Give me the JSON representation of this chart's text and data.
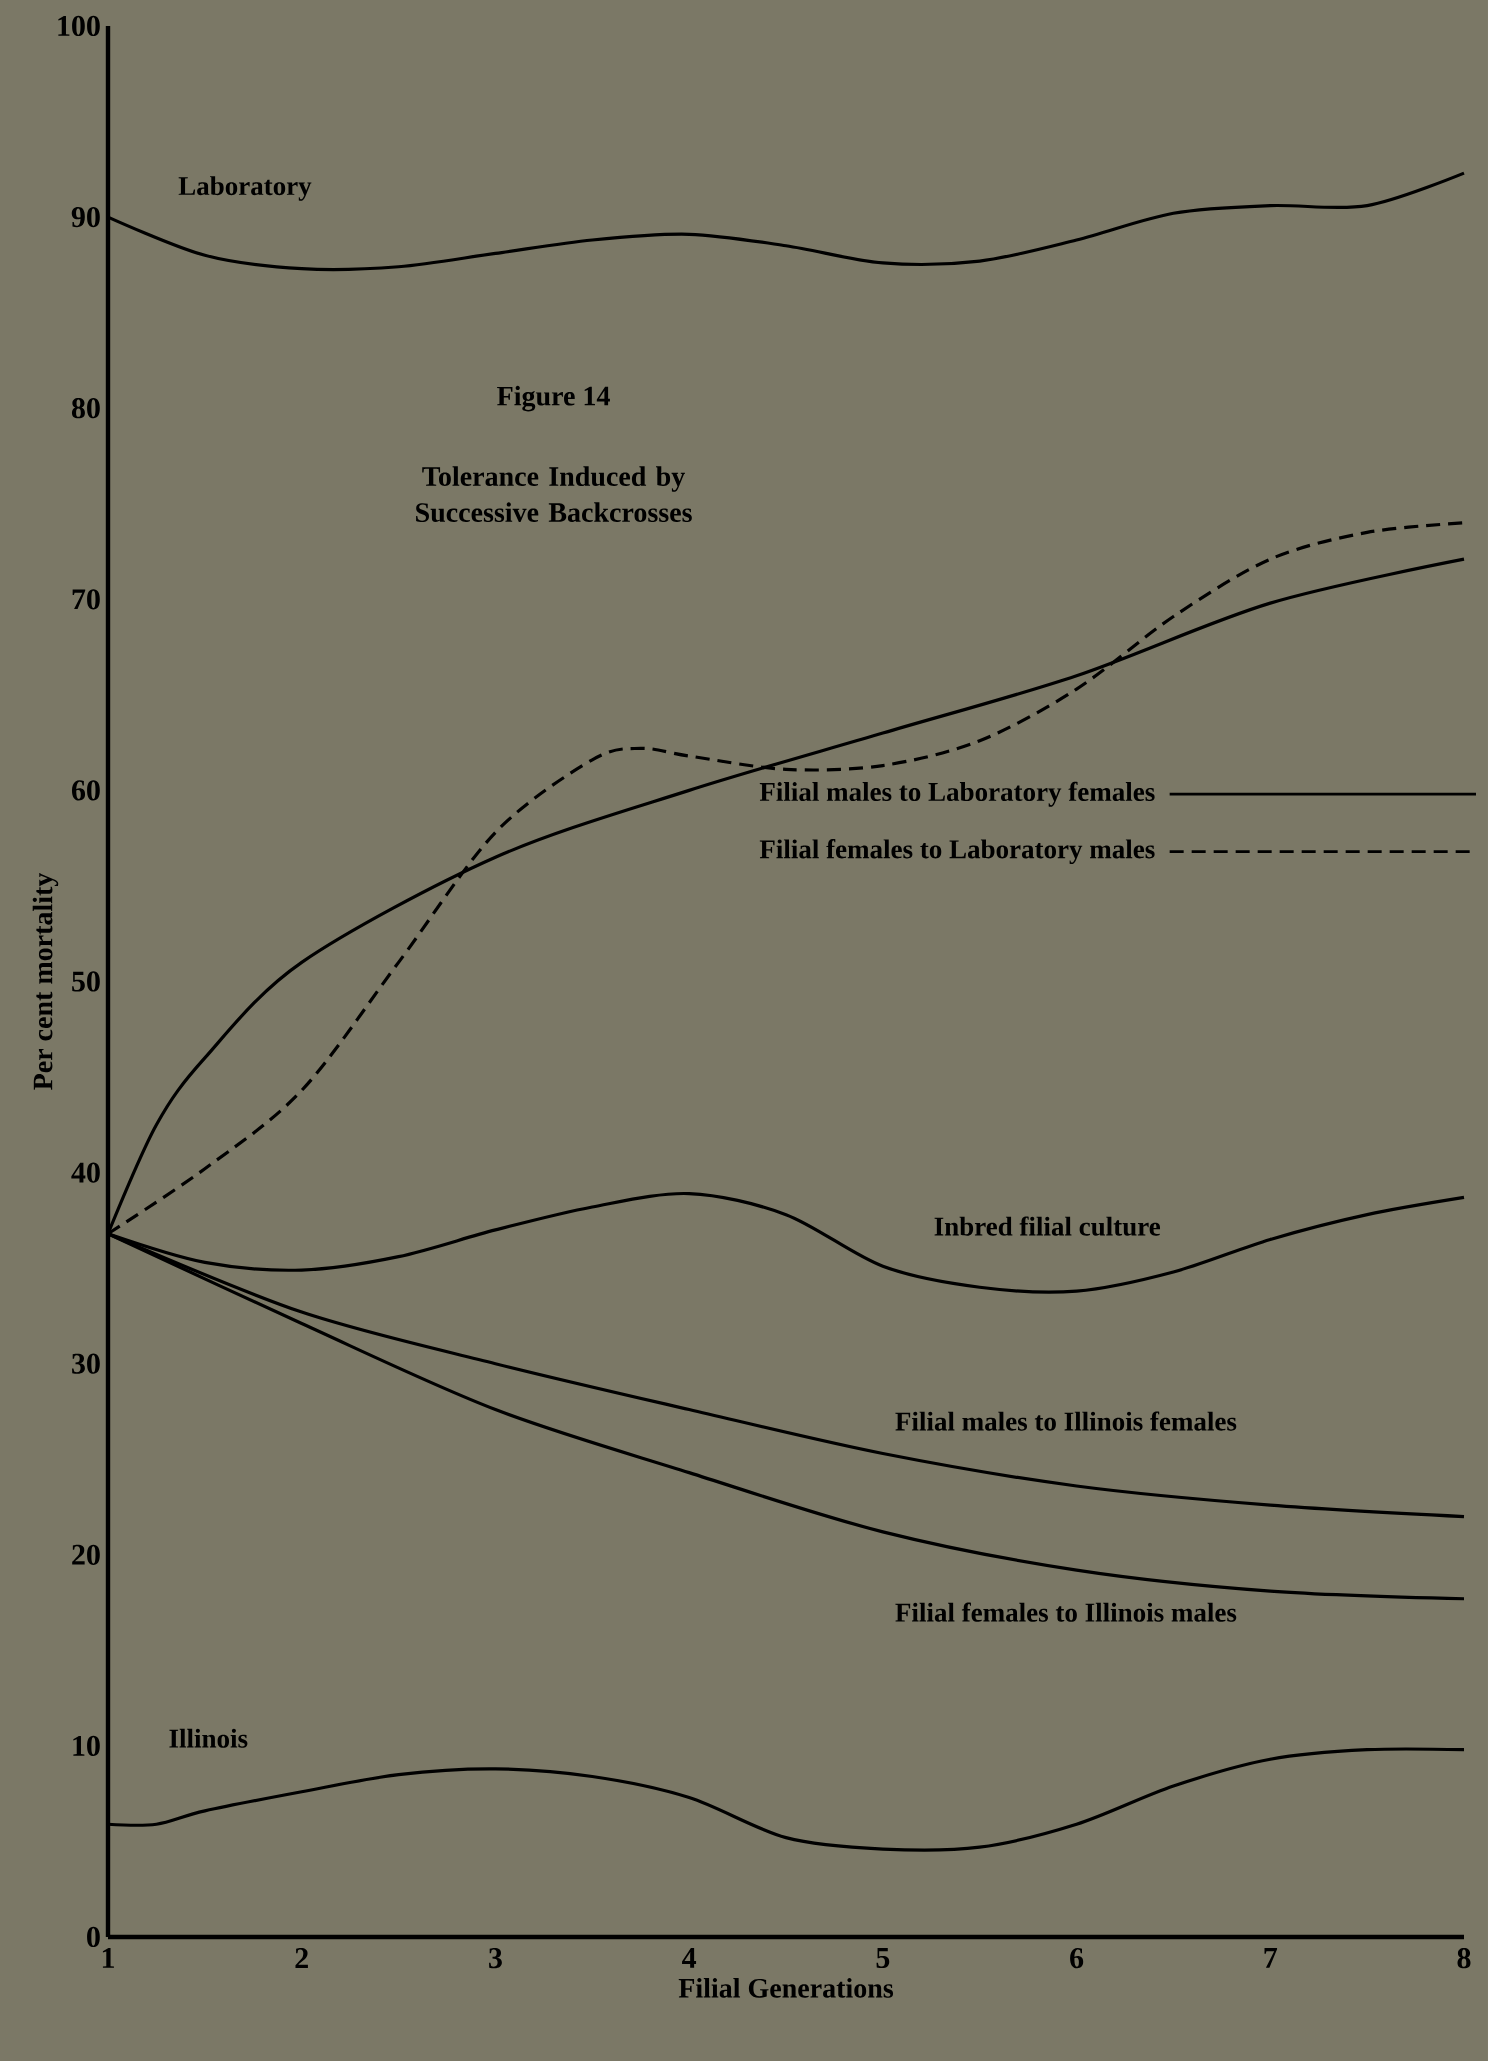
{
  "chart_data": {
    "type": "line",
    "title": "Figure 14",
    "subtitle": "Tolerance Induced by Successive Backcrosses",
    "xlabel": "Filial Generations",
    "ylabel": "Per cent mortality",
    "xlim": [
      1,
      8
    ],
    "ylim": [
      0,
      100
    ],
    "xticks": [
      1,
      2,
      3,
      4,
      5,
      6,
      7,
      8
    ],
    "yticks": [
      0,
      10,
      20,
      30,
      40,
      50,
      60,
      70,
      80,
      90,
      100
    ],
    "grid": false,
    "legend": false,
    "marker": "none",
    "line_style": "solid",
    "series": [
      {
        "name": "Laboratory",
        "color": "#000000",
        "x": [
          1,
          1.5,
          2,
          2.5,
          3,
          3.5,
          4,
          4.5,
          5,
          5.5,
          6,
          6.5,
          7,
          7.5,
          8
        ],
        "values": [
          90,
          88,
          87.3,
          87.4,
          88.1,
          88.8,
          89.1,
          88.5,
          87.6,
          87.7,
          88.8,
          90.2,
          90.6,
          90.6,
          92.3
        ]
      },
      {
        "name": "Filial males to Laboratory females",
        "color": "#000000",
        "x": [
          1,
          1.25,
          1.5,
          2,
          3,
          4,
          5,
          6,
          7,
          8
        ],
        "values": [
          36.8,
          42.5,
          46,
          51,
          56.5,
          60,
          63,
          66,
          69.8,
          72.1
        ]
      },
      {
        "name": "Filial females to Laboratory males",
        "color": "#000000",
        "line_style": "dashed",
        "x": [
          1,
          1.5,
          2,
          2.5,
          3,
          3.5,
          3.75,
          4,
          4.5,
          5,
          5.5,
          6,
          6.5,
          7,
          7.5,
          8
        ],
        "values": [
          36.8,
          40.2,
          44.3,
          51,
          57.8,
          61.6,
          62.2,
          61.8,
          61.1,
          61.3,
          62.6,
          65.3,
          69.1,
          72.1,
          73.5,
          74
        ]
      },
      {
        "name": "Inbred filial culture",
        "color": "#000000",
        "x": [
          1,
          1.5,
          2,
          2.5,
          3,
          3.5,
          4,
          4.5,
          5,
          5.5,
          6,
          6.5,
          7,
          7.5,
          8
        ],
        "values": [
          36.8,
          35.3,
          34.9,
          35.6,
          37,
          38.2,
          38.9,
          37.8,
          35.1,
          34,
          33.8,
          34.8,
          36.5,
          37.8,
          38.7
        ]
      },
      {
        "name": "Filial males to Illinois females",
        "color": "#000000",
        "x": [
          1,
          2,
          3,
          4,
          5,
          6,
          7,
          8
        ],
        "values": [
          36.8,
          32.7,
          30,
          27.6,
          25.3,
          23.6,
          22.6,
          22
        ]
      },
      {
        "name": "Filial females to Illinois males",
        "color": "#000000",
        "x": [
          1,
          2,
          3,
          4,
          5,
          6,
          7,
          8
        ],
        "values": [
          36.8,
          32.1,
          27.6,
          24.3,
          21.2,
          19.2,
          18.1,
          17.7
        ]
      },
      {
        "name": "Illinois",
        "color": "#000000",
        "x": [
          1,
          1.25,
          1.5,
          2,
          2.5,
          3,
          3.5,
          4,
          4.5,
          5,
          5.5,
          6,
          6.5,
          7,
          7.5,
          8
        ],
        "values": [
          5.9,
          5.9,
          6.6,
          7.6,
          8.5,
          8.8,
          8.4,
          7.3,
          5.2,
          4.6,
          4.7,
          5.9,
          7.9,
          9.3,
          9.8,
          9.8
        ]
      }
    ]
  }
}
